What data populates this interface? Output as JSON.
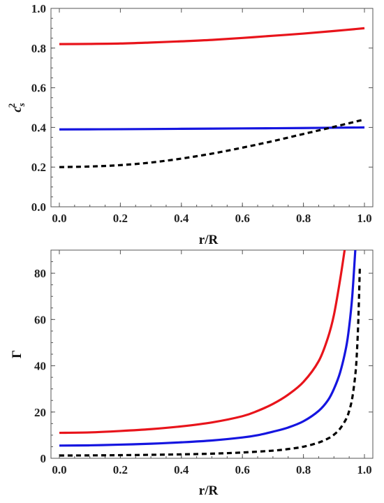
{
  "chart_data": [
    {
      "type": "line",
      "title": "",
      "xlabel": "r/R",
      "ylabel_base": "c",
      "ylabel_sub": "s",
      "ylabel_sup": "2",
      "xlim": [
        0,
        1
      ],
      "ylim": [
        0,
        1
      ],
      "xticks": [
        0.0,
        0.2,
        0.4,
        0.6,
        0.8,
        1.0
      ],
      "yticks": [
        0.0,
        0.2,
        0.4,
        0.6,
        0.8,
        1.0
      ],
      "xtick_labels": [
        "0.0",
        "0.2",
        "0.4",
        "0.6",
        "0.8",
        "1.0"
      ],
      "ytick_labels": [
        "0.0",
        "0.2",
        "0.4",
        "0.6",
        "0.8",
        "1.0"
      ],
      "grid": false,
      "series": [
        {
          "color": "#e8141b",
          "dash": "solid",
          "x": [
            0,
            0.1,
            0.2,
            0.3,
            0.4,
            0.5,
            0.6,
            0.7,
            0.8,
            0.9,
            1.0
          ],
          "y": [
            0.82,
            0.821,
            0.823,
            0.828,
            0.834,
            0.841,
            0.851,
            0.862,
            0.873,
            0.886,
            0.9
          ]
        },
        {
          "color": "#1515e0",
          "dash": "solid",
          "x": [
            0,
            0.2,
            0.4,
            0.6,
            0.8,
            1.0
          ],
          "y": [
            0.39,
            0.391,
            0.393,
            0.395,
            0.397,
            0.4
          ]
        },
        {
          "color": "#000000",
          "dash": "dashed",
          "x": [
            0,
            0.1,
            0.2,
            0.3,
            0.4,
            0.5,
            0.6,
            0.7,
            0.8,
            0.9,
            1.0
          ],
          "y": [
            0.2,
            0.203,
            0.21,
            0.223,
            0.243,
            0.268,
            0.298,
            0.331,
            0.367,
            0.403,
            0.44
          ]
        }
      ]
    },
    {
      "type": "line",
      "title": "",
      "xlabel": "r/R",
      "ylabel": "Γ",
      "xlim": [
        0,
        1
      ],
      "ylim": [
        0,
        90
      ],
      "xticks": [
        0.0,
        0.2,
        0.4,
        0.6,
        0.8,
        1.0
      ],
      "yticks": [
        0,
        20,
        40,
        60,
        80
      ],
      "xtick_labels": [
        "0.0",
        "0.2",
        "0.4",
        "0.6",
        "0.8",
        "1.0"
      ],
      "ytick_labels": [
        "0",
        "20",
        "40",
        "60",
        "80"
      ],
      "grid": false,
      "series": [
        {
          "color": "#e8141b",
          "dash": "solid",
          "x": [
            0,
            0.1,
            0.2,
            0.3,
            0.4,
            0.5,
            0.6,
            0.65,
            0.7,
            0.75,
            0.8,
            0.85,
            0.88,
            0.9,
            0.92,
            0.935
          ],
          "y": [
            11,
            11.2,
            11.8,
            12.6,
            13.8,
            15.5,
            18.2,
            20.5,
            23.5,
            27.5,
            33,
            42,
            52,
            62,
            77,
            90
          ]
        },
        {
          "color": "#1515e0",
          "dash": "solid",
          "x": [
            0,
            0.1,
            0.2,
            0.3,
            0.4,
            0.5,
            0.6,
            0.65,
            0.7,
            0.75,
            0.8,
            0.85,
            0.88,
            0.9,
            0.92,
            0.94,
            0.95,
            0.96,
            0.97
          ],
          "y": [
            5.5,
            5.6,
            5.9,
            6.3,
            6.9,
            7.7,
            9.0,
            10.0,
            11.5,
            13.3,
            16.0,
            20.5,
            25,
            30,
            37,
            48,
            57,
            70,
            90
          ]
        },
        {
          "color": "#000000",
          "dash": "dashed",
          "x": [
            0,
            0.1,
            0.2,
            0.3,
            0.4,
            0.5,
            0.6,
            0.7,
            0.75,
            0.8,
            0.85,
            0.88,
            0.9,
            0.92,
            0.94,
            0.95,
            0.96,
            0.97,
            0.975,
            0.98,
            0.985
          ],
          "y": [
            1.2,
            1.25,
            1.35,
            1.5,
            1.7,
            2.0,
            2.5,
            3.3,
            4.0,
            5.0,
            6.8,
            8.5,
            10.2,
            12.8,
            17,
            20.5,
            26,
            36,
            45,
            60,
            83
          ]
        }
      ]
    }
  ]
}
